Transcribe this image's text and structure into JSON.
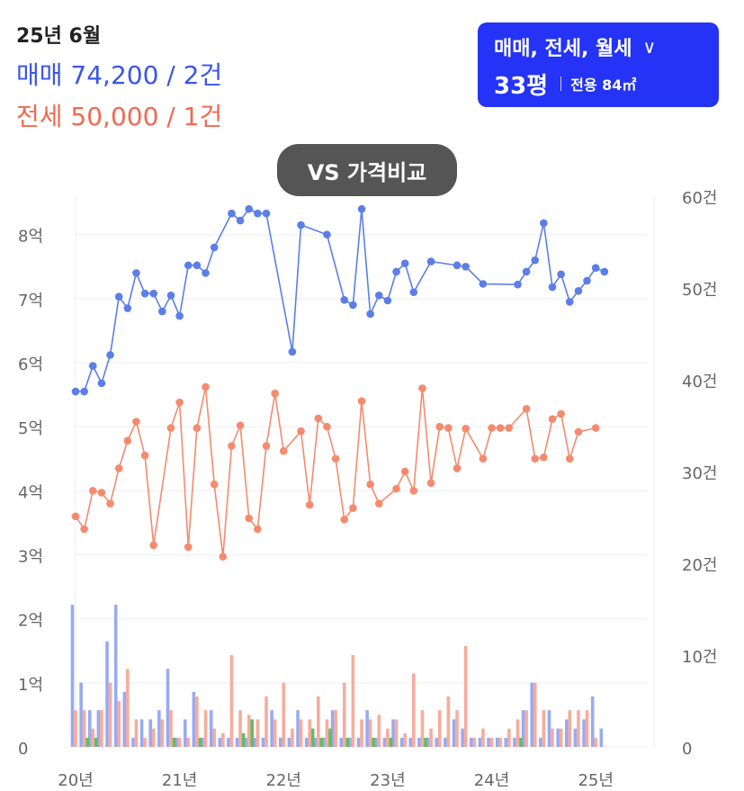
{
  "header": {
    "period": "25년 6월",
    "sale_summary": "매매 74,200 / 2건",
    "jeonse_summary": "전세 50,000 / 1건"
  },
  "type_selector": {
    "label": "매매, 전세, 월세",
    "size_pyeong": "33평",
    "size_area": "전용 84㎡"
  },
  "compare_button": {
    "label": "VS 가격비교"
  },
  "colors": {
    "sale": "#5b7ee8",
    "jeonse": "#f58a6f",
    "monthly": "#5cb85c",
    "sale_bar": "#93a5f2",
    "jeonse_bar": "#f7a897",
    "selector_bg": "#2433f5"
  },
  "chart_data": {
    "type": "line",
    "x_tick_labels": [
      "20년",
      "21년",
      "22년",
      "23년",
      "24년",
      "25년"
    ],
    "x_range": [
      0,
      66
    ],
    "left_axis": {
      "ticks": [
        "0",
        "1억",
        "2억",
        "3억",
        "4억",
        "5억",
        "6억",
        "7억",
        "8억"
      ],
      "ylim": [
        0,
        8.6
      ]
    },
    "right_axis": {
      "ticks": [
        "0",
        "10건",
        "20건",
        "30건",
        "40건",
        "50건",
        "60건"
      ],
      "ylim": [
        0,
        60
      ]
    },
    "grid": true,
    "series": [
      {
        "points": [
          [
            0,
            5.55
          ],
          [
            1,
            5.55
          ],
          [
            2,
            5.95
          ],
          [
            3,
            5.68
          ],
          [
            4,
            6.12
          ],
          [
            5,
            7.03
          ],
          [
            6,
            6.85
          ],
          [
            7,
            7.4
          ],
          [
            8,
            7.08
          ],
          [
            9,
            7.08
          ],
          [
            10,
            6.8
          ],
          [
            11,
            7.05
          ],
          [
            12,
            6.73
          ],
          [
            13,
            7.52
          ],
          [
            14,
            7.52
          ],
          [
            15,
            7.4
          ],
          [
            16,
            7.8
          ],
          [
            18,
            8.33
          ],
          [
            19,
            8.22
          ],
          [
            20,
            8.4
          ],
          [
            21,
            8.33
          ],
          [
            22,
            8.33
          ],
          [
            25,
            6.17
          ],
          [
            26,
            8.15
          ],
          [
            29,
            8.0
          ],
          [
            31,
            6.98
          ],
          [
            32,
            6.9
          ],
          [
            33,
            8.4
          ],
          [
            34,
            6.76
          ],
          [
            35,
            7.05
          ],
          [
            36,
            6.97
          ],
          [
            37,
            7.42
          ],
          [
            38,
            7.55
          ],
          [
            39,
            7.1
          ],
          [
            41,
            7.58
          ],
          [
            44,
            7.52
          ],
          [
            45,
            7.5
          ],
          [
            47,
            7.23
          ],
          [
            51,
            7.22
          ],
          [
            52,
            7.42
          ],
          [
            53,
            7.6
          ],
          [
            54,
            8.18
          ],
          [
            55,
            7.18
          ],
          [
            56,
            7.38
          ],
          [
            57,
            6.95
          ],
          [
            58,
            7.12
          ],
          [
            59,
            7.28
          ],
          [
            60,
            7.48
          ],
          [
            61,
            7.42
          ]
        ]
      },
      {
        "points": [
          [
            0,
            3.6
          ],
          [
            1,
            3.4
          ],
          [
            2,
            4.0
          ],
          [
            3,
            3.97
          ],
          [
            4,
            3.8
          ],
          [
            5,
            4.35
          ],
          [
            6,
            4.78
          ],
          [
            7,
            5.08
          ],
          [
            8,
            4.55
          ],
          [
            9,
            3.15
          ],
          [
            11,
            4.98
          ],
          [
            12,
            5.38
          ],
          [
            13,
            3.12
          ],
          [
            14,
            4.98
          ],
          [
            15,
            5.62
          ],
          [
            16,
            4.1
          ],
          [
            17,
            2.97
          ],
          [
            18,
            4.7
          ],
          [
            19,
            5.02
          ],
          [
            20,
            3.57
          ],
          [
            21,
            3.4
          ],
          [
            22,
            4.7
          ],
          [
            23,
            5.52
          ],
          [
            24,
            4.62
          ],
          [
            26,
            4.93
          ],
          [
            27,
            3.78
          ],
          [
            28,
            5.13
          ],
          [
            29,
            5.0
          ],
          [
            30,
            4.5
          ],
          [
            31,
            3.55
          ],
          [
            32,
            3.73
          ],
          [
            33,
            5.4
          ],
          [
            34,
            4.1
          ],
          [
            35,
            3.8
          ],
          [
            37,
            4.03
          ],
          [
            38,
            4.3
          ],
          [
            39,
            4.0
          ],
          [
            40,
            5.6
          ],
          [
            41,
            4.12
          ],
          [
            42,
            5.0
          ],
          [
            43,
            4.98
          ],
          [
            44,
            4.35
          ],
          [
            45,
            4.97
          ],
          [
            47,
            4.5
          ],
          [
            48,
            4.98
          ],
          [
            49,
            4.98
          ],
          [
            50,
            4.98
          ],
          [
            52,
            5.28
          ],
          [
            53,
            4.5
          ],
          [
            54,
            4.52
          ],
          [
            55,
            5.12
          ],
          [
            56,
            5.2
          ],
          [
            57,
            4.5
          ],
          [
            58,
            4.92
          ],
          [
            60,
            4.98
          ]
        ]
      }
    ],
    "volume_bars": {
      "sale": [
        [
          0,
          15.5
        ],
        [
          1,
          7
        ],
        [
          2,
          4
        ],
        [
          3,
          4
        ],
        [
          4,
          11.5
        ],
        [
          5,
          15.5
        ],
        [
          6,
          6
        ],
        [
          7,
          1
        ],
        [
          8,
          3
        ],
        [
          9,
          3
        ],
        [
          10,
          4
        ],
        [
          11,
          8.5
        ],
        [
          12,
          1
        ],
        [
          13,
          3
        ],
        [
          14,
          6
        ],
        [
          15,
          1
        ],
        [
          16,
          4
        ],
        [
          17,
          1
        ],
        [
          18,
          1
        ],
        [
          19,
          1
        ],
        [
          20,
          1
        ],
        [
          21,
          1
        ],
        [
          22,
          1
        ],
        [
          23,
          4
        ],
        [
          24,
          1
        ],
        [
          25,
          1
        ],
        [
          26,
          4
        ],
        [
          27,
          1
        ],
        [
          28,
          1
        ],
        [
          29,
          1
        ],
        [
          30,
          4
        ],
        [
          31,
          1
        ],
        [
          32,
          1
        ],
        [
          33,
          1
        ],
        [
          34,
          4
        ],
        [
          35,
          1
        ],
        [
          36,
          1
        ],
        [
          37,
          3
        ],
        [
          38,
          1
        ],
        [
          39,
          1
        ],
        [
          40,
          1
        ],
        [
          41,
          1
        ],
        [
          42,
          1
        ],
        [
          43,
          1
        ],
        [
          44,
          3
        ],
        [
          45,
          2
        ],
        [
          46,
          1
        ],
        [
          47,
          1
        ],
        [
          48,
          1
        ],
        [
          49,
          1
        ],
        [
          50,
          1
        ],
        [
          51,
          1
        ],
        [
          52,
          4
        ],
        [
          53,
          7
        ],
        [
          54,
          1
        ],
        [
          55,
          4
        ],
        [
          56,
          2
        ],
        [
          57,
          3
        ],
        [
          58,
          2
        ],
        [
          59,
          3
        ],
        [
          60,
          5.5
        ],
        [
          61,
          2
        ]
      ],
      "jeonse": [
        [
          0,
          4
        ],
        [
          1,
          4
        ],
        [
          2,
          2
        ],
        [
          3,
          4
        ],
        [
          4,
          7
        ],
        [
          5,
          5
        ],
        [
          6,
          8.5
        ],
        [
          7,
          3
        ],
        [
          8,
          1
        ],
        [
          9,
          2
        ],
        [
          10,
          3
        ],
        [
          11,
          4
        ],
        [
          12,
          1
        ],
        [
          13,
          1
        ],
        [
          14,
          5.5
        ],
        [
          15,
          4
        ],
        [
          16,
          2
        ],
        [
          17,
          1.5
        ],
        [
          18,
          10
        ],
        [
          19,
          4
        ],
        [
          20,
          3.5
        ],
        [
          21,
          3
        ],
        [
          22,
          5.5
        ],
        [
          23,
          3
        ],
        [
          24,
          7
        ],
        [
          25,
          2
        ],
        [
          26,
          3
        ],
        [
          27,
          3
        ],
        [
          28,
          5.5
        ],
        [
          29,
          3
        ],
        [
          30,
          4
        ],
        [
          31,
          7
        ],
        [
          32,
          10
        ],
        [
          33,
          3
        ],
        [
          34,
          3
        ],
        [
          35,
          3.5
        ],
        [
          36,
          2
        ],
        [
          37,
          3
        ],
        [
          38,
          1.5
        ],
        [
          39,
          8
        ],
        [
          40,
          4
        ],
        [
          41,
          2
        ],
        [
          42,
          4
        ],
        [
          43,
          5.5
        ],
        [
          44,
          4
        ],
        [
          45,
          11
        ],
        [
          46,
          1
        ],
        [
          47,
          2
        ],
        [
          48,
          1
        ],
        [
          49,
          1
        ],
        [
          50,
          2
        ],
        [
          51,
          3
        ],
        [
          52,
          4
        ],
        [
          53,
          7
        ],
        [
          54,
          4
        ],
        [
          55,
          2
        ],
        [
          56,
          2
        ],
        [
          57,
          4
        ],
        [
          58,
          4
        ],
        [
          59,
          4
        ],
        [
          60,
          1
        ]
      ],
      "monthly": [
        [
          1,
          1
        ],
        [
          2,
          1
        ],
        [
          11,
          1
        ],
        [
          14,
          1
        ],
        [
          19,
          1.5
        ],
        [
          20,
          3
        ],
        [
          27,
          2
        ],
        [
          28,
          1
        ],
        [
          29,
          2
        ],
        [
          31,
          1
        ],
        [
          34,
          1
        ],
        [
          36,
          1
        ],
        [
          40,
          1
        ],
        [
          51,
          1
        ]
      ]
    }
  }
}
